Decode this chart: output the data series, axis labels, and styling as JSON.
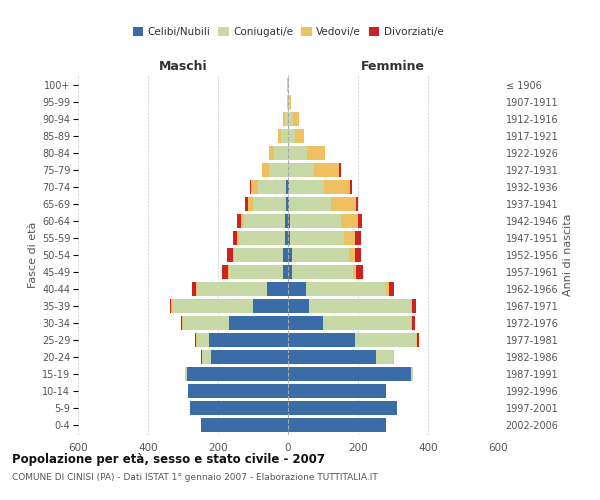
{
  "age_groups": [
    "0-4",
    "5-9",
    "10-14",
    "15-19",
    "20-24",
    "25-29",
    "30-34",
    "35-39",
    "40-44",
    "45-49",
    "50-54",
    "55-59",
    "60-64",
    "65-69",
    "70-74",
    "75-79",
    "80-84",
    "85-89",
    "90-94",
    "95-99",
    "100+"
  ],
  "birth_years": [
    "2002-2006",
    "1997-2001",
    "1992-1996",
    "1987-1991",
    "1982-1986",
    "1977-1981",
    "1972-1976",
    "1967-1971",
    "1962-1966",
    "1957-1961",
    "1952-1956",
    "1947-1951",
    "1942-1946",
    "1937-1941",
    "1932-1936",
    "1927-1931",
    "1922-1926",
    "1917-1921",
    "1912-1916",
    "1907-1911",
    "≤ 1906"
  ],
  "male_celibi": [
    250,
    280,
    285,
    290,
    220,
    225,
    170,
    100,
    60,
    15,
    15,
    10,
    10,
    5,
    5,
    0,
    0,
    0,
    0,
    0,
    0
  ],
  "male_coniugati": [
    0,
    0,
    0,
    5,
    25,
    35,
    130,
    230,
    200,
    155,
    140,
    130,
    115,
    95,
    80,
    55,
    40,
    20,
    8,
    3,
    2
  ],
  "male_vedovi": [
    0,
    0,
    0,
    0,
    2,
    2,
    2,
    3,
    2,
    2,
    3,
    5,
    10,
    15,
    20,
    20,
    15,
    10,
    5,
    1,
    0
  ],
  "male_divorziati": [
    0,
    0,
    0,
    0,
    2,
    3,
    5,
    5,
    12,
    18,
    15,
    12,
    10,
    8,
    5,
    0,
    0,
    0,
    0,
    0,
    0
  ],
  "female_celibi": [
    280,
    310,
    280,
    350,
    250,
    190,
    100,
    60,
    50,
    10,
    10,
    5,
    5,
    3,
    3,
    0,
    0,
    0,
    0,
    0,
    0
  ],
  "female_coniugati": [
    0,
    0,
    0,
    8,
    50,
    175,
    250,
    290,
    230,
    175,
    165,
    155,
    145,
    120,
    100,
    75,
    55,
    20,
    15,
    5,
    2
  ],
  "female_vedovi": [
    0,
    0,
    0,
    0,
    2,
    3,
    3,
    5,
    8,
    10,
    15,
    30,
    50,
    70,
    75,
    70,
    50,
    25,
    15,
    3,
    1
  ],
  "female_divorziati": [
    0,
    0,
    0,
    0,
    2,
    5,
    10,
    12,
    15,
    20,
    18,
    18,
    12,
    8,
    5,
    5,
    0,
    0,
    0,
    0,
    0
  ],
  "color_celibi": "#3a6ca8",
  "color_coniugati": "#c8d9a8",
  "color_vedovi": "#f0c060",
  "color_divorziati": "#cc2222",
  "title": "Popolazione per età, sesso e stato civile - 2007",
  "subtitle": "COMUNE DI CINISI (PA) - Dati ISTAT 1° gennaio 2007 - Elaborazione TUTTITALIA.IT",
  "xlabel_left": "Maschi",
  "xlabel_right": "Femmine",
  "ylabel_left": "Fasce di età",
  "ylabel_right": "Anni di nascita",
  "xlim": 600,
  "bg_color": "#ffffff",
  "grid_color": "#cccccc"
}
